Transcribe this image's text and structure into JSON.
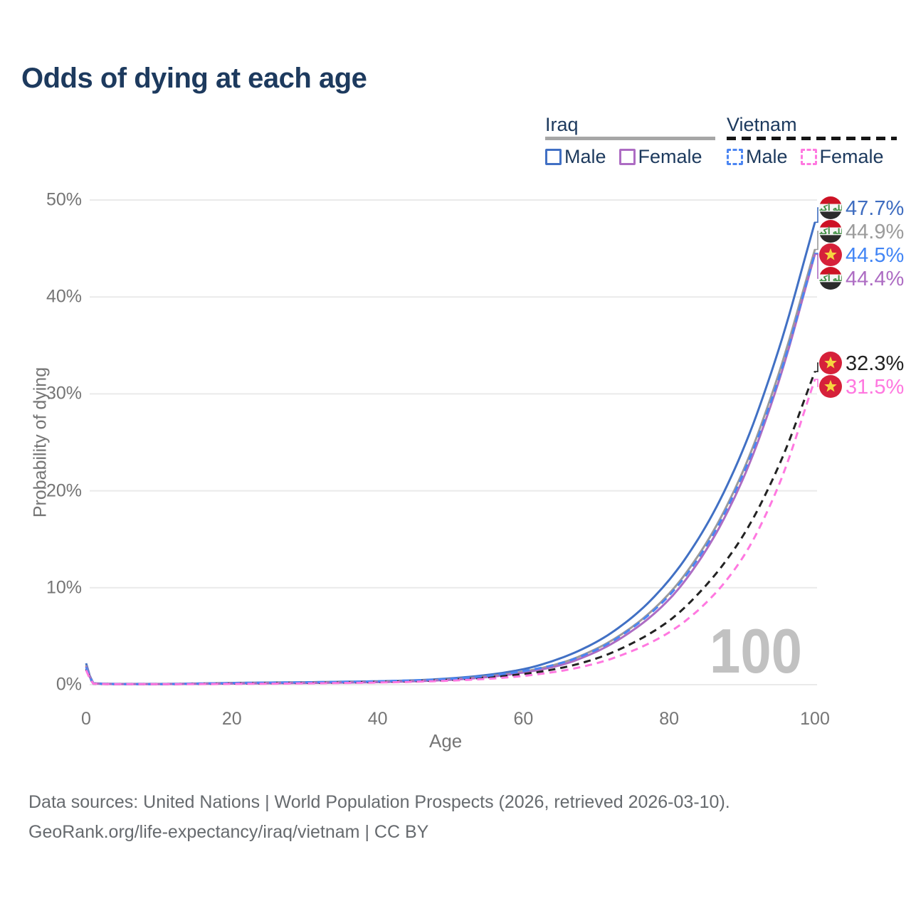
{
  "title": "Odds of dying at each age",
  "legend": {
    "groups": [
      {
        "country": "Iraq",
        "line_style": "solid",
        "underline_color": "#a6a6a6",
        "items": [
          {
            "label": "Male",
            "color": "#4170c4",
            "dashed": false
          },
          {
            "label": "Female",
            "color": "#ad6cc3",
            "dashed": false
          }
        ]
      },
      {
        "country": "Vietnam",
        "line_style": "dashed",
        "underline_color": "#151515",
        "items": [
          {
            "label": "Male",
            "color": "#4b85f2",
            "dashed": true
          },
          {
            "label": "Female",
            "color": "#ff78e0",
            "dashed": true
          }
        ]
      }
    ]
  },
  "y_axis": {
    "title": "Probability of dying",
    "min": 0,
    "max": 50,
    "ticks": [
      {
        "label": "50%",
        "value": 50
      },
      {
        "label": "40%",
        "value": 40
      },
      {
        "label": "30%",
        "value": 30
      },
      {
        "label": "20%",
        "value": 20
      },
      {
        "label": "10%",
        "value": 10
      },
      {
        "label": "0%",
        "value": 0
      }
    ]
  },
  "x_axis": {
    "title": "Age",
    "min": 0,
    "max": 100,
    "ticks": [
      {
        "label": "0",
        "value": 0
      },
      {
        "label": "20",
        "value": 20
      },
      {
        "label": "40",
        "value": 40
      },
      {
        "label": "60",
        "value": 60
      },
      {
        "label": "80",
        "value": 80
      },
      {
        "label": "100",
        "value": 100
      }
    ]
  },
  "hover_age_watermark": "100",
  "footer": {
    "line1": "Data sources: United Nations | World Population Prospects (2026, retrieved 2026-03-10).",
    "line2": "GeoRank.org/life-expectancy/iraq/vietnam | CC BY"
  },
  "chart_data": {
    "type": "line",
    "title": "Odds of dying at each age",
    "xlabel": "Age",
    "ylabel": "Probability of dying",
    "xlim": [
      0,
      100
    ],
    "ylim_percent": [
      0,
      50
    ],
    "grid": "horizontal",
    "legend_position": "top-right",
    "x": [
      0,
      1,
      5,
      10,
      15,
      20,
      25,
      30,
      35,
      40,
      45,
      50,
      55,
      60,
      65,
      70,
      75,
      80,
      85,
      90,
      95,
      100
    ],
    "series": [
      {
        "id": "iraq_male",
        "name": "Iraq Male",
        "country": "Iraq",
        "sex": "Male",
        "color": "#4170c4",
        "dashed": false,
        "values_percent": [
          2.2,
          0.15,
          0.08,
          0.08,
          0.12,
          0.18,
          0.22,
          0.25,
          0.3,
          0.35,
          0.45,
          0.65,
          1.0,
          1.6,
          2.7,
          4.4,
          7.0,
          10.8,
          16.3,
          24.0,
          34.5,
          47.7
        ],
        "end_label": "47.7%"
      },
      {
        "id": "iraq_all",
        "name": "Iraq",
        "country": "Iraq",
        "sex": "All",
        "color": "#9b9b9b",
        "dashed": false,
        "values_percent": [
          2.0,
          0.13,
          0.07,
          0.07,
          0.1,
          0.15,
          0.18,
          0.21,
          0.25,
          0.3,
          0.4,
          0.55,
          0.85,
          1.35,
          2.2,
          3.7,
          6.0,
          9.4,
          14.5,
          21.8,
          32.0,
          44.9
        ],
        "end_label": "44.9%"
      },
      {
        "id": "iraq_female",
        "name": "Iraq Female",
        "country": "Iraq",
        "sex": "Female",
        "color": "#ad6cc3",
        "dashed": false,
        "values_percent": [
          1.9,
          0.12,
          0.06,
          0.06,
          0.08,
          0.11,
          0.14,
          0.17,
          0.21,
          0.26,
          0.35,
          0.5,
          0.78,
          1.25,
          2.0,
          3.4,
          5.6,
          8.8,
          13.8,
          21.0,
          31.2,
          44.4
        ],
        "end_label": "44.4%"
      },
      {
        "id": "vietnam_all",
        "name": "Vietnam",
        "country": "Vietnam",
        "sex": "All",
        "color": "#222222",
        "dashed": true,
        "values_percent": [
          1.6,
          0.1,
          0.05,
          0.05,
          0.08,
          0.12,
          0.15,
          0.18,
          0.22,
          0.28,
          0.36,
          0.5,
          0.75,
          1.1,
          1.7,
          2.7,
          4.3,
          6.6,
          10.2,
          15.2,
          22.5,
          32.3
        ],
        "end_label": "32.3%"
      },
      {
        "id": "vietnam_male",
        "name": "Vietnam Male",
        "country": "Vietnam",
        "sex": "Male",
        "color": "#4b85f2",
        "dashed": true,
        "values_percent": [
          1.8,
          0.12,
          0.06,
          0.06,
          0.1,
          0.16,
          0.2,
          0.24,
          0.29,
          0.35,
          0.45,
          0.6,
          0.9,
          1.4,
          2.2,
          3.6,
          5.9,
          9.2,
          14.2,
          21.5,
          31.5,
          44.5
        ],
        "end_label": "44.5%"
      },
      {
        "id": "vietnam_female",
        "name": "Vietnam Female",
        "country": "Vietnam",
        "sex": "Female",
        "color": "#ff78e0",
        "dashed": true,
        "values_percent": [
          1.5,
          0.1,
          0.05,
          0.05,
          0.06,
          0.08,
          0.1,
          0.13,
          0.17,
          0.22,
          0.3,
          0.42,
          0.6,
          0.9,
          1.4,
          2.2,
          3.5,
          5.4,
          8.4,
          13.0,
          20.5,
          31.5
        ],
        "end_label": "31.5%"
      }
    ],
    "end_labels": [
      {
        "series": "iraq_male",
        "text": "47.7%",
        "color": "#3e6cc0",
        "flag": "iraq"
      },
      {
        "series": "iraq_all",
        "text": "44.9%",
        "color": "#9b9b9b",
        "flag": "iraq"
      },
      {
        "series": "vietnam_male",
        "text": "44.5%",
        "color": "#4285f5",
        "flag": "vietnam"
      },
      {
        "series": "iraq_female",
        "text": "44.4%",
        "color": "#ad6cc3",
        "flag": "iraq"
      },
      {
        "series": "vietnam_all",
        "text": "32.3%",
        "color": "#222222",
        "flag": "vietnam"
      },
      {
        "series": "vietnam_female",
        "text": "31.5%",
        "color": "#ff78e0",
        "flag": "vietnam"
      }
    ]
  },
  "flags": {
    "iraq": {
      "top": "#cd1225",
      "middle": "#f4f4f4",
      "bottom": "#2b2b2b",
      "script_color": "#3e8e41",
      "script": "الله أكبر"
    },
    "vietnam": {
      "background": "#d6213a",
      "star": "#f6d640"
    }
  },
  "style_colors": {
    "title": "#1d3a5e",
    "axis_text": "#757575",
    "grid": "#eaeaea",
    "watermark": "#c1c1c1",
    "footer": "#666a6e"
  }
}
